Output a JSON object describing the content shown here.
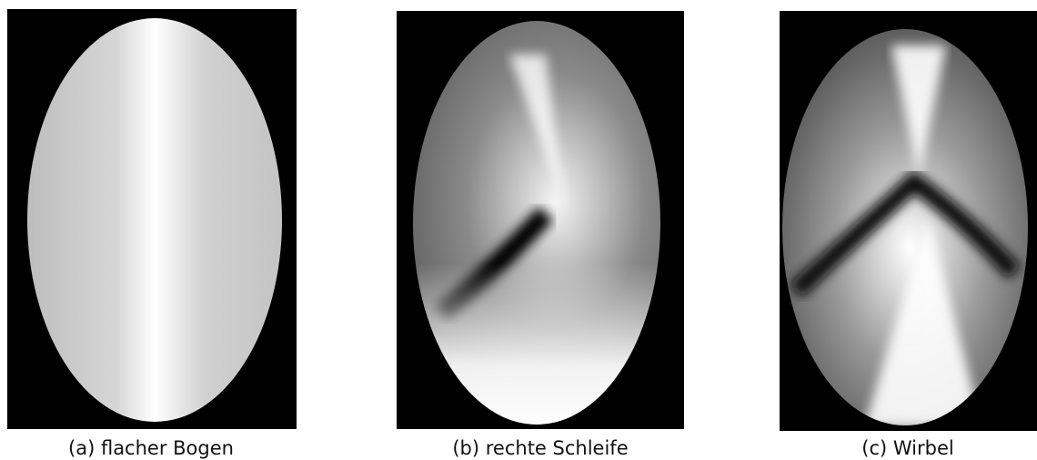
{
  "figures": [
    {
      "caption": "(a) flacher Bogen"
    },
    {
      "caption": "(b) rechte Schleife"
    },
    {
      "caption": "(c) Wirbel"
    }
  ]
}
